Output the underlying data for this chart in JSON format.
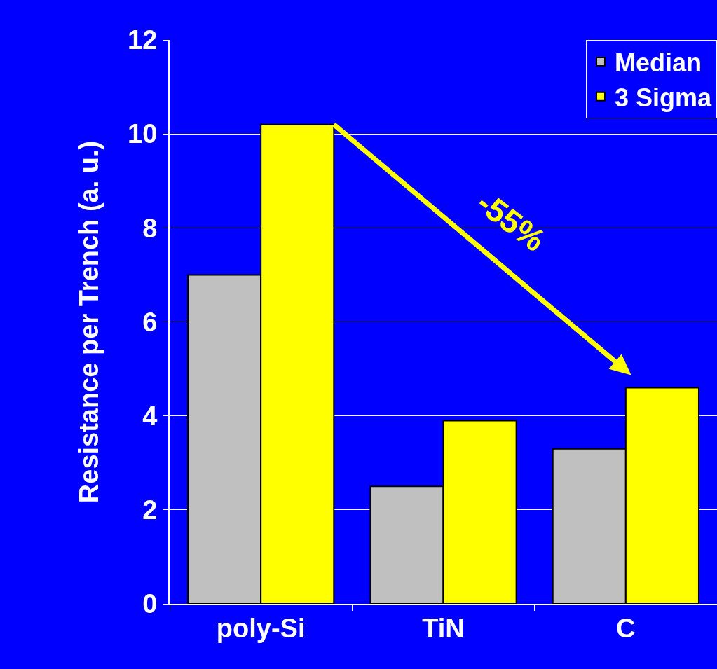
{
  "chart_data": {
    "type": "bar",
    "ylabel": "Resistance per Trench (a. u.)",
    "categories": [
      "poly-Si",
      "TiN",
      "C"
    ],
    "series": [
      {
        "name": "Median",
        "color": "#c0c0c0",
        "values": [
          7.0,
          2.5,
          3.3
        ]
      },
      {
        "name": "3 Sigma",
        "color": "#ffff00",
        "values": [
          10.2,
          3.9,
          4.6
        ]
      }
    ],
    "ylim": [
      0,
      12
    ],
    "yticks": [
      0,
      2,
      4,
      6,
      8,
      10,
      12
    ],
    "grid": "y",
    "legend": "top right",
    "annotations": [
      "-55%"
    ]
  }
}
